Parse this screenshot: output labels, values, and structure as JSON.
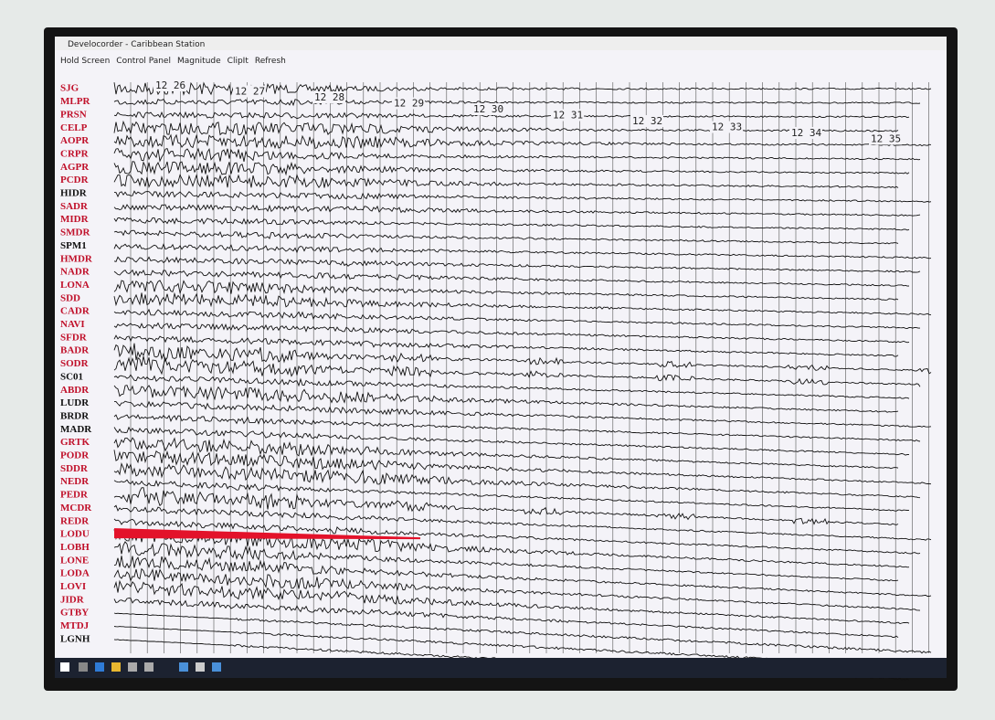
{
  "window": {
    "title": "Develocorder - Caribbean Station",
    "menu": [
      "Hold Screen",
      "Control Panel",
      "Magnitude",
      "ClipIt",
      "Refresh"
    ]
  },
  "time_labels": [
    "12 26",
    "12 27",
    "12 28",
    "12 29",
    "12 30",
    "12 31",
    "12 32",
    "12 33",
    "12 34",
    "12 35"
  ],
  "stations": [
    {
      "label": "SJG",
      "color": "#c0102a"
    },
    {
      "label": "MLPR",
      "color": "#c0102a"
    },
    {
      "label": "PRSN",
      "color": "#c0102a"
    },
    {
      "label": "CELP",
      "color": "#c0102a"
    },
    {
      "label": "AOPR",
      "color": "#c0102a"
    },
    {
      "label": "CRPR",
      "color": "#c0102a"
    },
    {
      "label": "AGPR",
      "color": "#c0102a"
    },
    {
      "label": "PCDR",
      "color": "#c0102a"
    },
    {
      "label": "HIDR",
      "color": "#111111"
    },
    {
      "label": "SADR",
      "color": "#c0102a"
    },
    {
      "label": "MIDR",
      "color": "#c0102a"
    },
    {
      "label": "SMDR",
      "color": "#c0102a"
    },
    {
      "label": "SPM1",
      "color": "#111111"
    },
    {
      "label": "HMDR",
      "color": "#c0102a"
    },
    {
      "label": "NADR",
      "color": "#c0102a"
    },
    {
      "label": "LONA",
      "color": "#c0102a"
    },
    {
      "label": "SDD",
      "color": "#c0102a"
    },
    {
      "label": "CADR",
      "color": "#c0102a"
    },
    {
      "label": "NAVI",
      "color": "#c0102a"
    },
    {
      "label": "SFDR",
      "color": "#c0102a"
    },
    {
      "label": "BADR",
      "color": "#c0102a"
    },
    {
      "label": "SODR",
      "color": "#c0102a"
    },
    {
      "label": "SC01",
      "color": "#111111"
    },
    {
      "label": "ABDR",
      "color": "#c0102a"
    },
    {
      "label": "LUDR",
      "color": "#111111"
    },
    {
      "label": "BRDR",
      "color": "#111111"
    },
    {
      "label": "MADR",
      "color": "#111111"
    },
    {
      "label": "GRTK",
      "color": "#c0102a"
    },
    {
      "label": "PODR",
      "color": "#c0102a"
    },
    {
      "label": "SDDR",
      "color": "#c0102a"
    },
    {
      "label": "NEDR",
      "color": "#c0102a"
    },
    {
      "label": "PEDR",
      "color": "#c0102a"
    },
    {
      "label": "MCDR",
      "color": "#c0102a"
    },
    {
      "label": "REDR",
      "color": "#c0102a"
    },
    {
      "label": "LODU",
      "color": "#c0102a"
    },
    {
      "label": "LOBH",
      "color": "#c0102a"
    },
    {
      "label": "LONE",
      "color": "#c0102a"
    },
    {
      "label": "LODA",
      "color": "#c0102a"
    },
    {
      "label": "LOVI",
      "color": "#c0102a"
    },
    {
      "label": "JIDR",
      "color": "#c0102a"
    },
    {
      "label": "GTBY",
      "color": "#c0102a"
    },
    {
      "label": "MTDJ",
      "color": "#c0102a"
    },
    {
      "label": "LGNH",
      "color": "#111111"
    }
  ]
}
